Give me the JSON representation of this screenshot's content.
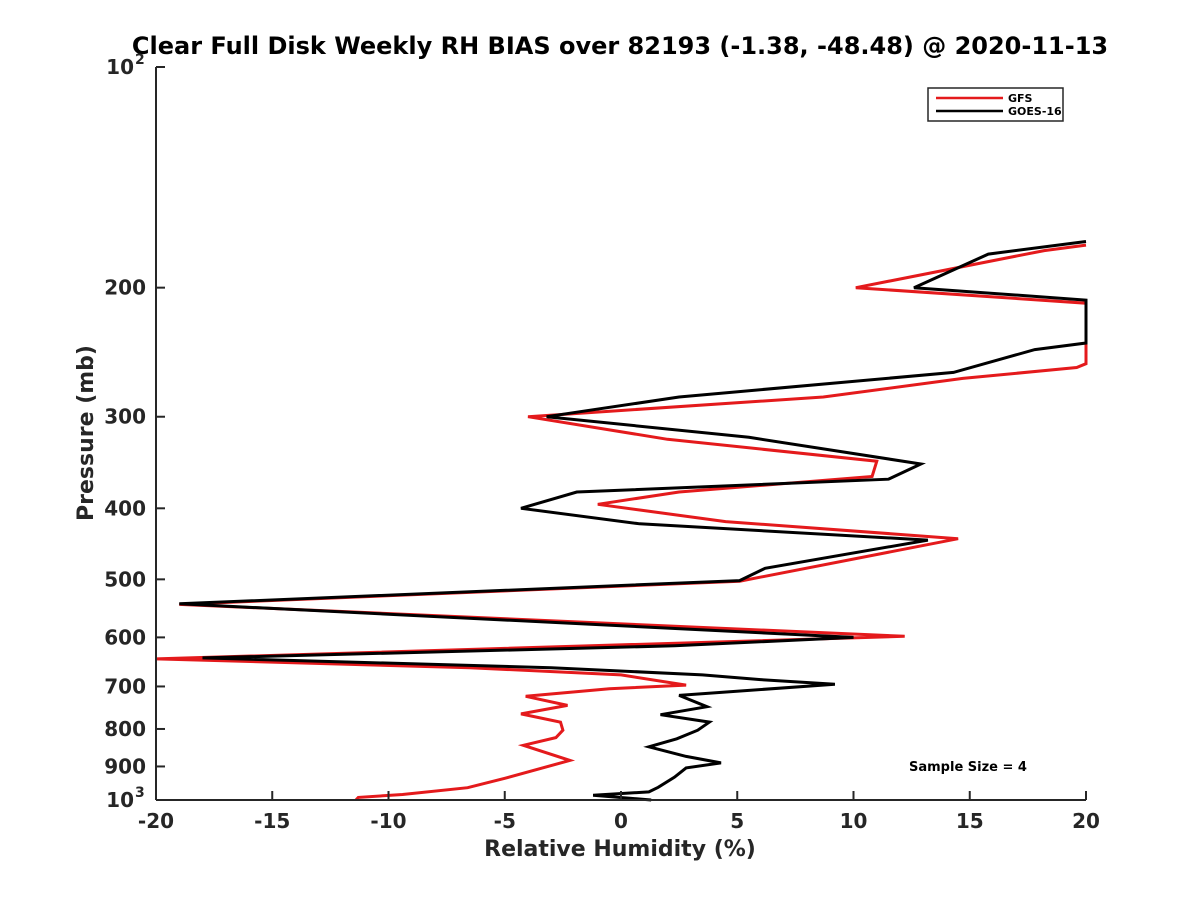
{
  "chart_data": {
    "type": "line",
    "title": "Clear Full Disk Weekly RH BIAS over 82193 (-1.38, -48.48) @ 2020-11-13",
    "xlabel": "Relative Humidity (%)",
    "ylabel": "Pressure (mb)",
    "xlim": [
      -20,
      20
    ],
    "ylim": [
      100,
      1000
    ],
    "y_scale": "log",
    "y_reversed": true,
    "x_ticks": [
      "-20",
      "-15",
      "-10",
      "-5",
      "0",
      "5",
      "10",
      "15",
      "20"
    ],
    "y_ticks": [
      {
        "value": 100,
        "base": "10",
        "exp": "2"
      },
      {
        "value": 200,
        "base": "200",
        "exp": ""
      },
      {
        "value": 300,
        "base": "300",
        "exp": ""
      },
      {
        "value": 400,
        "base": "400",
        "exp": ""
      },
      {
        "value": 500,
        "base": "500",
        "exp": ""
      },
      {
        "value": 600,
        "base": "600",
        "exp": ""
      },
      {
        "value": 700,
        "base": "700",
        "exp": ""
      },
      {
        "value": 800,
        "base": "800",
        "exp": ""
      },
      {
        "value": 900,
        "base": "900",
        "exp": ""
      },
      {
        "value": 1000,
        "base": "10",
        "exp": "3"
      }
    ],
    "grid": false,
    "legend": "top-right",
    "annotation": "Sample Size = 4",
    "series": [
      {
        "name": "GFS",
        "color": "#e41a1c",
        "points": [
          [
            20,
            175
          ],
          [
            18.2,
            178
          ],
          [
            10.1,
            200
          ],
          [
            20,
            210
          ],
          [
            20,
            254
          ],
          [
            19.6,
            257
          ],
          [
            14.7,
            266
          ],
          [
            8.7,
            282
          ],
          [
            -4,
            300
          ],
          [
            2,
            322
          ],
          [
            11,
            345
          ],
          [
            10.8,
            362
          ],
          [
            2.5,
            380
          ],
          [
            -1,
            395
          ],
          [
            4.5,
            417
          ],
          [
            14.5,
            440
          ],
          [
            5.1,
            503
          ],
          [
            -19,
            541
          ],
          [
            12.2,
            598
          ],
          [
            -20,
            642
          ],
          [
            -6.5,
            660
          ],
          [
            0,
            675
          ],
          [
            2.8,
            697
          ],
          [
            -0.5,
            705
          ],
          [
            -4.1,
            722
          ],
          [
            -2.3,
            743
          ],
          [
            -4.3,
            763
          ],
          [
            -2.6,
            783
          ],
          [
            -2.5,
            803
          ],
          [
            -2.8,
            822
          ],
          [
            -4.2,
            842
          ],
          [
            -2.2,
            883
          ],
          [
            -5,
            934
          ],
          [
            -6.6,
            962
          ],
          [
            -9.4,
            983
          ],
          [
            -11.3,
            992
          ],
          [
            -11.4,
            1000
          ]
        ]
      },
      {
        "name": "GOES-16",
        "color": "#000000",
        "points": [
          [
            20,
            173
          ],
          [
            15.8,
            180
          ],
          [
            12.6,
            200
          ],
          [
            20,
            208
          ],
          [
            20,
            238
          ],
          [
            17.8,
            243
          ],
          [
            14.3,
            261
          ],
          [
            2.5,
            282
          ],
          [
            -3.2,
            300
          ],
          [
            5.5,
            320
          ],
          [
            12.9,
            348
          ],
          [
            11.5,
            365
          ],
          [
            -1.9,
            380
          ],
          [
            -4.3,
            400
          ],
          [
            0.8,
            420
          ],
          [
            13.2,
            442
          ],
          [
            6.2,
            483
          ],
          [
            5.1,
            502
          ],
          [
            -19,
            540
          ],
          [
            10,
            600
          ],
          [
            2.3,
            616
          ],
          [
            -18,
            640
          ],
          [
            -3,
            660
          ],
          [
            3.5,
            675
          ],
          [
            6,
            685
          ],
          [
            9.2,
            695
          ],
          [
            2.5,
            720
          ],
          [
            3.7,
            746
          ],
          [
            1.7,
            765
          ],
          [
            3.8,
            783
          ],
          [
            3.3,
            803
          ],
          [
            2.4,
            825
          ],
          [
            1.2,
            846
          ],
          [
            2.8,
            872
          ],
          [
            4.3,
            890
          ],
          [
            2.8,
            904
          ],
          [
            2.3,
            931
          ],
          [
            1.6,
            961
          ],
          [
            1.2,
            975
          ],
          [
            -1.2,
            985
          ],
          [
            1.3,
            1000
          ]
        ]
      }
    ]
  }
}
